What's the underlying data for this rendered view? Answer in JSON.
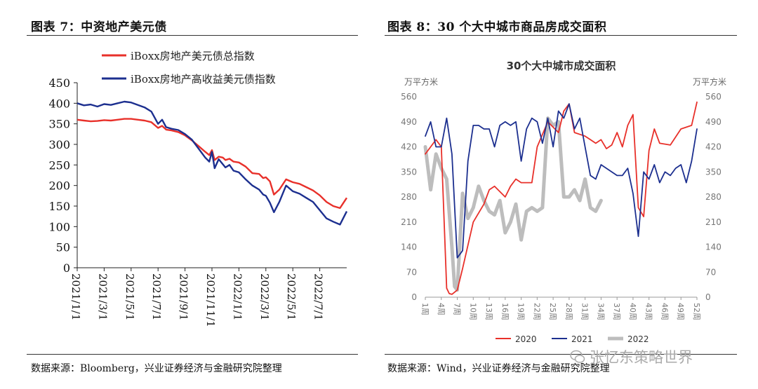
{
  "left_figure": {
    "title": "图表 7：中资地产美元债",
    "source": "数据来源：Bloomberg，兴业证券经济与金融研究院整理"
  },
  "right_figure": {
    "title": "图表 8：30 个大中城市商品房成交面积",
    "source": "数据来源：Wind，兴业证券经济与金融研究院整理"
  },
  "watermark": "张忆东策略世界",
  "colors": {
    "red": "#e8302a",
    "navy": "#1c2f8f",
    "gray": "#bdbdbd"
  },
  "chart_data": [
    {
      "type": "line",
      "title": "",
      "ylim": [
        0,
        450
      ],
      "yticks": [
        "0",
        "50",
        "100",
        "150",
        "200",
        "250",
        "300",
        "350",
        "400",
        "450"
      ],
      "xticks": [
        "2021/1/1",
        "2021/3/1",
        "2021/5/1",
        "2021/7/1",
        "2021/9/1",
        "2021/11/1",
        "2022/1/1",
        "2022/3/1",
        "2022/5/1",
        "2022/7/1"
      ],
      "x_range_months": [
        0,
        20
      ],
      "series": [
        {
          "name": "iBoxx房地产美元债总指数",
          "color": "#e8302a",
          "x": [
            0,
            0.5,
            1,
            1.5,
            2,
            2.5,
            3,
            3.5,
            4,
            4.5,
            5,
            5.5,
            6,
            6.3,
            6.6,
            7,
            7.5,
            8,
            8.5,
            9,
            9.5,
            9.8,
            10,
            10.2,
            10.5,
            10.8,
            11,
            11.3,
            11.6,
            12,
            12.5,
            13,
            13.5,
            13.8,
            14,
            14.3,
            14.6,
            15,
            15.5,
            16,
            16.5,
            17,
            17.5,
            18,
            18.5,
            19,
            19.5,
            20
          ],
          "y": [
            360,
            358,
            356,
            357,
            359,
            358,
            360,
            362,
            362,
            360,
            358,
            354,
            340,
            345,
            336,
            334,
            330,
            322,
            310,
            296,
            282,
            274,
            286,
            262,
            270,
            268,
            262,
            265,
            258,
            256,
            246,
            230,
            228,
            218,
            220,
            210,
            178,
            190,
            215,
            208,
            204,
            196,
            188,
            176,
            160,
            150,
            145,
            170
          ]
        },
        {
          "name": "iBoxx房地产高收益美元债指数",
          "color": "#1c2f8f",
          "x": [
            0,
            0.5,
            1,
            1.5,
            2,
            2.5,
            3,
            3.5,
            4,
            4.5,
            5,
            5.5,
            6,
            6.3,
            6.6,
            7,
            7.5,
            8,
            8.5,
            9,
            9.5,
            9.8,
            10,
            10.2,
            10.5,
            10.8,
            11,
            11.3,
            11.6,
            12,
            12.5,
            13,
            13.5,
            13.8,
            14,
            14.3,
            14.6,
            15,
            15.5,
            16,
            16.5,
            17,
            17.5,
            18,
            18.5,
            19,
            19.5,
            20
          ],
          "y": [
            400,
            395,
            397,
            392,
            398,
            396,
            400,
            404,
            402,
            396,
            390,
            380,
            350,
            360,
            342,
            338,
            335,
            325,
            312,
            290,
            268,
            258,
            282,
            242,
            264,
            252,
            244,
            250,
            236,
            232,
            215,
            200,
            190,
            178,
            175,
            158,
            135,
            160,
            200,
            186,
            180,
            170,
            160,
            140,
            120,
            112,
            105,
            137
          ]
        }
      ]
    },
    {
      "type": "line",
      "title": "30个大中城市成交面积",
      "ylabel_left": "万平方米",
      "ylabel_right": "万平方米",
      "ylim": [
        0,
        560
      ],
      "yticks": [
        "0",
        "70",
        "140",
        "210",
        "280",
        "350",
        "420",
        "490",
        "560"
      ],
      "xticks": [
        "1周",
        "4周",
        "7周",
        "10周",
        "13周",
        "16周",
        "19周",
        "22周",
        "25周",
        "28周",
        "31周",
        "34周",
        "37周",
        "40周",
        "43周",
        "46周",
        "49周",
        "52周"
      ],
      "x_range_weeks": [
        1,
        52
      ],
      "series": [
        {
          "name": "2020",
          "color": "#e8302a",
          "axis": "left",
          "x": [
            1,
            2,
            3,
            4,
            5,
            5.5,
            6,
            7,
            8,
            10,
            12,
            13,
            14,
            16,
            17,
            18,
            19,
            21,
            22,
            24,
            26,
            27,
            28,
            29,
            31,
            32,
            33,
            34,
            35,
            36,
            37,
            38,
            39,
            40,
            41,
            42,
            43,
            44,
            45,
            47,
            49,
            51,
            52
          ],
          "y": [
            400,
            420,
            440,
            420,
            25,
            10,
            8,
            20,
            80,
            210,
            260,
            300,
            310,
            280,
            310,
            330,
            320,
            320,
            420,
            490,
            460,
            520,
            540,
            460,
            450,
            440,
            430,
            440,
            415,
            425,
            460,
            420,
            480,
            510,
            250,
            225,
            410,
            470,
            430,
            425,
            470,
            480,
            545
          ]
        },
        {
          "name": "2021",
          "color": "#1c2f8f",
          "axis": "left",
          "x": [
            1,
            2,
            3,
            4,
            5,
            6,
            7,
            8,
            9,
            10,
            11,
            12,
            13,
            14,
            15,
            16,
            17,
            18,
            19,
            20,
            21,
            22,
            23,
            24,
            25,
            26,
            27,
            28,
            29,
            30,
            31,
            32,
            33,
            34,
            35,
            36,
            37,
            38,
            39,
            40,
            41,
            42,
            43,
            44,
            45,
            46,
            47,
            48,
            49,
            50,
            51,
            52
          ],
          "y": [
            450,
            490,
            420,
            420,
            500,
            400,
            110,
            130,
            380,
            480,
            480,
            470,
            470,
            420,
            480,
            490,
            480,
            490,
            380,
            470,
            500,
            490,
            430,
            500,
            420,
            520,
            500,
            540,
            470,
            500,
            420,
            340,
            330,
            370,
            360,
            350,
            340,
            340,
            360,
            290,
            170,
            350,
            330,
            370,
            320,
            350,
            340,
            360,
            370,
            320,
            380,
            470
          ]
        },
        {
          "name": "2022",
          "color": "#bdbdbd",
          "axis": "right",
          "x": [
            1,
            2,
            3,
            4,
            5,
            6,
            6.5,
            7,
            8,
            9,
            10,
            11,
            12,
            13,
            14,
            15,
            16,
            17,
            18,
            19,
            20,
            21,
            22,
            23,
            24,
            25,
            26,
            27,
            28,
            29,
            30,
            31,
            32,
            33,
            34
          ],
          "y": [
            420,
            300,
            400,
            360,
            330,
            140,
            30,
            20,
            290,
            220,
            250,
            310,
            270,
            240,
            230,
            270,
            180,
            210,
            260,
            160,
            240,
            250,
            240,
            250,
            500,
            480,
            490,
            280,
            280,
            300,
            270,
            330,
            250,
            240,
            270
          ]
        }
      ]
    }
  ]
}
